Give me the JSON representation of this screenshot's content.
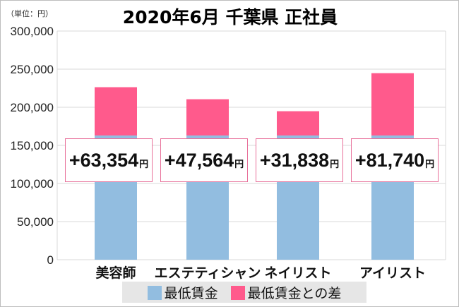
{
  "chart_data": {
    "type": "bar",
    "stacked": true,
    "title": "2020年6月 千葉県 正社員",
    "unit_label": "（単位：円）",
    "categories": [
      "美容師",
      "エステティシャン",
      "ネイリスト",
      "アイリスト"
    ],
    "series": [
      {
        "name": "最低賃金",
        "values": [
          163000,
          163000,
          163000,
          163000
        ],
        "color": "#92bde0"
      },
      {
        "name": "最低賃金との差",
        "values": [
          63354,
          47564,
          31838,
          81740
        ],
        "color": "#ff5a8c"
      }
    ],
    "data_labels": [
      "+63,354",
      "+47,564",
      "+31,838",
      "+81,740"
    ],
    "data_label_unit": "円",
    "ylim": [
      0,
      300000
    ],
    "yticks": [
      "0",
      "50,000",
      "100,000",
      "150,000",
      "200,000",
      "250,000",
      "300,000"
    ],
    "grid": true,
    "legend": "bottom"
  }
}
